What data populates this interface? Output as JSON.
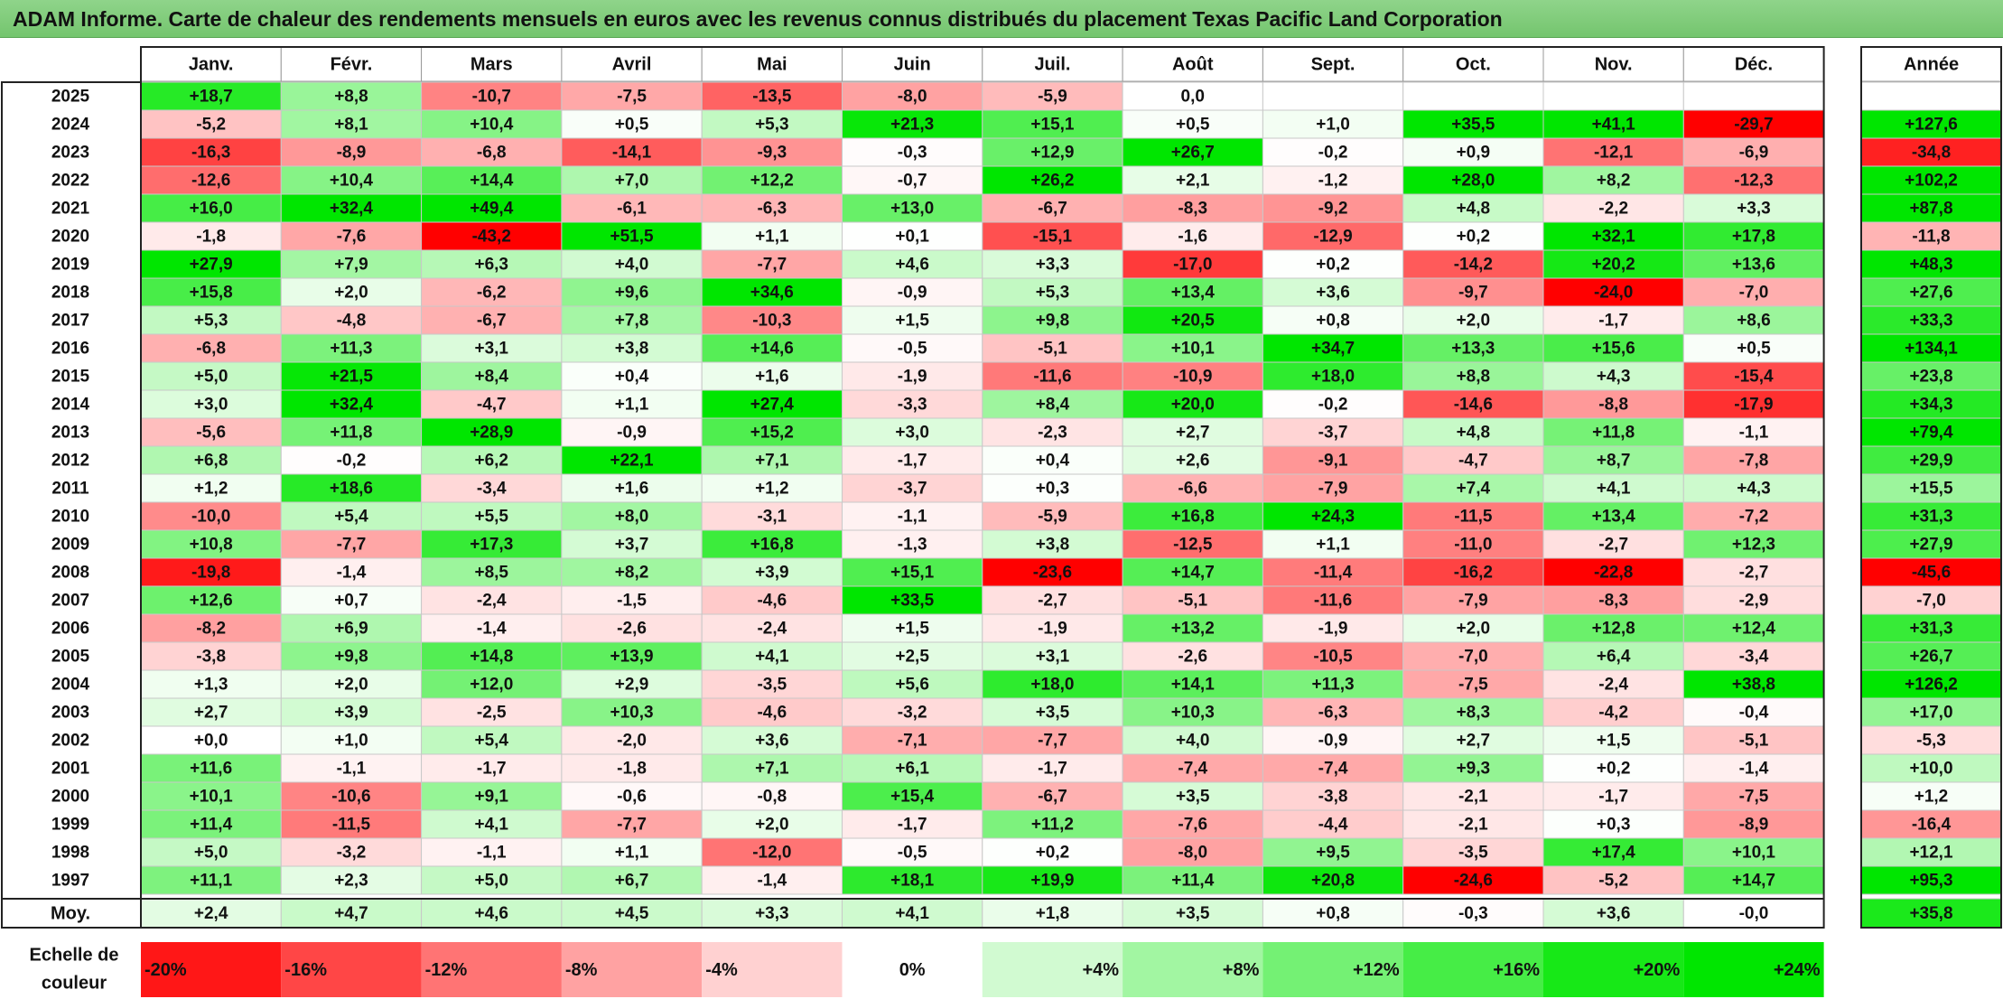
{
  "title": "ADAM Informe. Carte de chaleur des rendements mensuels en euros avec les revenus connus distribués du placement Texas Pacific Land Corporation",
  "year_header": "Année",
  "average_label": "Moy.",
  "scale_label_line1": "Echelle de",
  "scale_label_line2": "couleur",
  "chart_data": {
    "type": "heatmap",
    "title": "ADAM Informe. Carte de chaleur des rendements mensuels en euros avec les revenus connus distribués du placement Texas Pacific Land Corporation",
    "months": [
      "Janv.",
      "Févr.",
      "Mars",
      "Avril",
      "Mai",
      "Juin",
      "Juil.",
      "Août",
      "Sept.",
      "Oct.",
      "Nov.",
      "Déc."
    ],
    "rows": [
      {
        "year": "2025",
        "values": [
          "+18,7",
          "+8,8",
          "-10,7",
          "-7,5",
          "-13,5",
          "-8,0",
          "-5,9",
          "0,0",
          "",
          "",
          "",
          ""
        ],
        "annual": ""
      },
      {
        "year": "2024",
        "values": [
          "-5,2",
          "+8,1",
          "+10,4",
          "+0,5",
          "+5,3",
          "+21,3",
          "+15,1",
          "+0,5",
          "+1,0",
          "+35,5",
          "+41,1",
          "-29,7"
        ],
        "annual": "+127,6"
      },
      {
        "year": "2023",
        "values": [
          "-16,3",
          "-8,9",
          "-6,8",
          "-14,1",
          "-9,3",
          "-0,3",
          "+12,9",
          "+26,7",
          "-0,2",
          "+0,9",
          "-12,1",
          "-6,9"
        ],
        "annual": "-34,8"
      },
      {
        "year": "2022",
        "values": [
          "-12,6",
          "+10,4",
          "+14,4",
          "+7,0",
          "+12,2",
          "-0,7",
          "+26,2",
          "+2,1",
          "-1,2",
          "+28,0",
          "+8,2",
          "-12,3"
        ],
        "annual": "+102,2"
      },
      {
        "year": "2021",
        "values": [
          "+16,0",
          "+32,4",
          "+49,4",
          "-6,1",
          "-6,3",
          "+13,0",
          "-6,7",
          "-8,3",
          "-9,2",
          "+4,8",
          "-2,2",
          "+3,3"
        ],
        "annual": "+87,8"
      },
      {
        "year": "2020",
        "values": [
          "-1,8",
          "-7,6",
          "-43,2",
          "+51,5",
          "+1,1",
          "+0,1",
          "-15,1",
          "-1,6",
          "-12,9",
          "+0,2",
          "+32,1",
          "+17,8"
        ],
        "annual": "-11,8"
      },
      {
        "year": "2019",
        "values": [
          "+27,9",
          "+7,9",
          "+6,3",
          "+4,0",
          "-7,7",
          "+4,6",
          "+3,3",
          "-17,0",
          "+0,2",
          "-14,2",
          "+20,2",
          "+13,6"
        ],
        "annual": "+48,3"
      },
      {
        "year": "2018",
        "values": [
          "+15,8",
          "+2,0",
          "-6,2",
          "+9,6",
          "+34,6",
          "-0,9",
          "+5,3",
          "+13,4",
          "+3,6",
          "-9,7",
          "-24,0",
          "-7,0"
        ],
        "annual": "+27,6"
      },
      {
        "year": "2017",
        "values": [
          "+5,3",
          "-4,8",
          "-6,7",
          "+7,8",
          "-10,3",
          "+1,5",
          "+9,8",
          "+20,5",
          "+0,8",
          "+2,0",
          "-1,7",
          "+8,6"
        ],
        "annual": "+33,3"
      },
      {
        "year": "2016",
        "values": [
          "-6,8",
          "+11,3",
          "+3,1",
          "+3,8",
          "+14,6",
          "-0,5",
          "-5,1",
          "+10,1",
          "+34,7",
          "+13,3",
          "+15,6",
          "+0,5"
        ],
        "annual": "+134,1"
      },
      {
        "year": "2015",
        "values": [
          "+5,0",
          "+21,5",
          "+8,4",
          "+0,4",
          "+1,6",
          "-1,9",
          "-11,6",
          "-10,9",
          "+18,0",
          "+8,8",
          "+4,3",
          "-15,4"
        ],
        "annual": "+23,8"
      },
      {
        "year": "2014",
        "values": [
          "+3,0",
          "+32,4",
          "-4,7",
          "+1,1",
          "+27,4",
          "-3,3",
          "+8,4",
          "+20,0",
          "-0,2",
          "-14,6",
          "-8,8",
          "-17,9"
        ],
        "annual": "+34,3"
      },
      {
        "year": "2013",
        "values": [
          "-5,6",
          "+11,8",
          "+28,9",
          "-0,9",
          "+15,2",
          "+3,0",
          "-2,3",
          "+2,7",
          "-3,7",
          "+4,8",
          "+11,8",
          "-1,1"
        ],
        "annual": "+79,4"
      },
      {
        "year": "2012",
        "values": [
          "+6,8",
          "-0,2",
          "+6,2",
          "+22,1",
          "+7,1",
          "-1,7",
          "+0,4",
          "+2,6",
          "-9,1",
          "-4,7",
          "+8,7",
          "-7,8"
        ],
        "annual": "+29,9"
      },
      {
        "year": "2011",
        "values": [
          "+1,2",
          "+18,6",
          "-3,4",
          "+1,6",
          "+1,2",
          "-3,7",
          "+0,3",
          "-6,6",
          "-7,9",
          "+7,4",
          "+4,1",
          "+4,3"
        ],
        "annual": "+15,5"
      },
      {
        "year": "2010",
        "values": [
          "-10,0",
          "+5,4",
          "+5,5",
          "+8,0",
          "-3,1",
          "-1,1",
          "-5,9",
          "+16,8",
          "+24,3",
          "-11,5",
          "+13,4",
          "-7,2"
        ],
        "annual": "+31,3"
      },
      {
        "year": "2009",
        "values": [
          "+10,8",
          "-7,7",
          "+17,3",
          "+3,7",
          "+16,8",
          "-1,3",
          "+3,8",
          "-12,5",
          "+1,1",
          "-11,0",
          "-2,7",
          "+12,3"
        ],
        "annual": "+27,9"
      },
      {
        "year": "2008",
        "values": [
          "-19,8",
          "-1,4",
          "+8,5",
          "+8,2",
          "+3,9",
          "+15,1",
          "-23,6",
          "+14,7",
          "-11,4",
          "-16,2",
          "-22,8",
          "-2,7"
        ],
        "annual": "-45,6"
      },
      {
        "year": "2007",
        "values": [
          "+12,6",
          "+0,7",
          "-2,4",
          "-1,5",
          "-4,6",
          "+33,5",
          "-2,7",
          "-5,1",
          "-11,6",
          "-7,9",
          "-8,3",
          "-2,9"
        ],
        "annual": "-7,0"
      },
      {
        "year": "2006",
        "values": [
          "-8,2",
          "+6,9",
          "-1,4",
          "-2,6",
          "-2,4",
          "+1,5",
          "-1,9",
          "+13,2",
          "-1,9",
          "+2,0",
          "+12,8",
          "+12,4"
        ],
        "annual": "+31,3"
      },
      {
        "year": "2005",
        "values": [
          "-3,8",
          "+9,8",
          "+14,8",
          "+13,9",
          "+4,1",
          "+2,5",
          "+3,1",
          "-2,6",
          "-10,5",
          "-7,0",
          "+6,4",
          "-3,4"
        ],
        "annual": "+26,7"
      },
      {
        "year": "2004",
        "values": [
          "+1,3",
          "+2,0",
          "+12,0",
          "+2,9",
          "-3,5",
          "+5,6",
          "+18,0",
          "+14,1",
          "+11,3",
          "-7,5",
          "-2,4",
          "+38,8"
        ],
        "annual": "+126,2"
      },
      {
        "year": "2003",
        "values": [
          "+2,7",
          "+3,9",
          "-2,5",
          "+10,3",
          "-4,6",
          "-3,2",
          "+3,5",
          "+10,3",
          "-6,3",
          "+8,3",
          "-4,2",
          "-0,4"
        ],
        "annual": "+17,0"
      },
      {
        "year": "2002",
        "values": [
          "+0,0",
          "+1,0",
          "+5,4",
          "-2,0",
          "+3,6",
          "-7,1",
          "-7,7",
          "+4,0",
          "-0,9",
          "+2,7",
          "+1,5",
          "-5,1"
        ],
        "annual": "-5,3"
      },
      {
        "year": "2001",
        "values": [
          "+11,6",
          "-1,1",
          "-1,7",
          "-1,8",
          "+7,1",
          "+6,1",
          "-1,7",
          "-7,4",
          "-7,4",
          "+9,3",
          "+0,2",
          "-1,4"
        ],
        "annual": "+10,0"
      },
      {
        "year": "2000",
        "values": [
          "+10,1",
          "-10,6",
          "+9,1",
          "-0,6",
          "-0,8",
          "+15,4",
          "-6,7",
          "+3,5",
          "-3,8",
          "-2,1",
          "-1,7",
          "-7,5"
        ],
        "annual": "+1,2"
      },
      {
        "year": "1999",
        "values": [
          "+11,4",
          "-11,5",
          "+4,1",
          "-7,7",
          "+2,0",
          "-1,7",
          "+11,2",
          "-7,6",
          "-4,4",
          "-2,1",
          "+0,3",
          "-8,9"
        ],
        "annual": "-16,4"
      },
      {
        "year": "1998",
        "values": [
          "+5,0",
          "-3,2",
          "-1,1",
          "+1,1",
          "-12,0",
          "-0,5",
          "+0,2",
          "-8,0",
          "+9,5",
          "-3,5",
          "+17,4",
          "+10,1"
        ],
        "annual": "+12,1"
      },
      {
        "year": "1997",
        "values": [
          "+11,1",
          "+2,3",
          "+5,0",
          "+6,7",
          "-1,4",
          "+18,1",
          "+19,9",
          "+11,4",
          "+20,8",
          "-24,6",
          "-5,2",
          "+14,7"
        ],
        "annual": "+95,3"
      }
    ],
    "average": {
      "values": [
        "+2,4",
        "+4,7",
        "+4,6",
        "+4,5",
        "+3,3",
        "+4,1",
        "+1,8",
        "+3,5",
        "+0,8",
        "-0,3",
        "+3,6",
        "-0,0"
      ],
      "annual": "+35,8"
    },
    "color_scale": {
      "labels": [
        "-20%",
        "-16%",
        "-12%",
        "-8%",
        "-4%",
        "0%",
        "+4%",
        "+8%",
        "+12%",
        "+16%",
        "+20%",
        "+24%"
      ],
      "negative_color": "#ff0000",
      "positive_color": "#00e600",
      "neutral_color": "#ffffff"
    }
  }
}
